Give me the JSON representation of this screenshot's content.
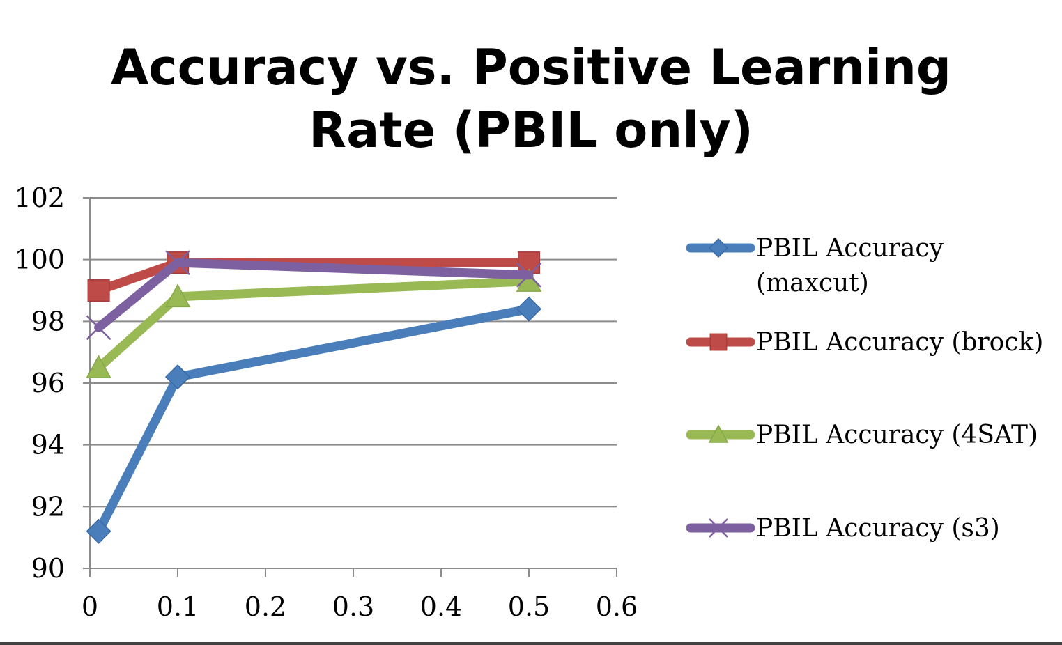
{
  "chart_data": {
    "type": "line",
    "title": "Accuracy vs. Positive Learning Rate (PBIL only)",
    "title_lines": [
      "Accuracy vs. Positive Learning",
      "Rate (PBIL only)"
    ],
    "xlabel": "",
    "ylabel": "",
    "xlim": [
      0,
      0.6
    ],
    "ylim": [
      90,
      102
    ],
    "x_ticks": [
      "0",
      "0.1",
      "0.2",
      "0.3",
      "0.4",
      "0.5",
      "0.6"
    ],
    "y_ticks": [
      "90",
      "92",
      "94",
      "96",
      "98",
      "100",
      "102"
    ],
    "grid": "horizontal",
    "legend_position": "right",
    "series": [
      {
        "name": "PBIL Accuracy (maxcut)",
        "color": "#4a7ebb",
        "marker": "diamond",
        "x": [
          0.01,
          0.1,
          0.5
        ],
        "values": [
          91.2,
          96.2,
          98.4
        ]
      },
      {
        "name": "PBIL Accuracy (brock)",
        "color": "#be4b48",
        "marker": "square",
        "x": [
          0.01,
          0.1,
          0.5
        ],
        "values": [
          99.0,
          99.9,
          99.9
        ]
      },
      {
        "name": "PBIL Accuracy (4SAT)",
        "color": "#98b954",
        "marker": "triangle",
        "x": [
          0.01,
          0.1,
          0.5
        ],
        "values": [
          96.5,
          98.8,
          99.3
        ]
      },
      {
        "name": "PBIL Accuracy (s3)",
        "color": "#7d60a0",
        "marker": "x",
        "x": [
          0.01,
          0.1,
          0.5
        ],
        "values": [
          97.8,
          99.9,
          99.5
        ]
      }
    ]
  }
}
